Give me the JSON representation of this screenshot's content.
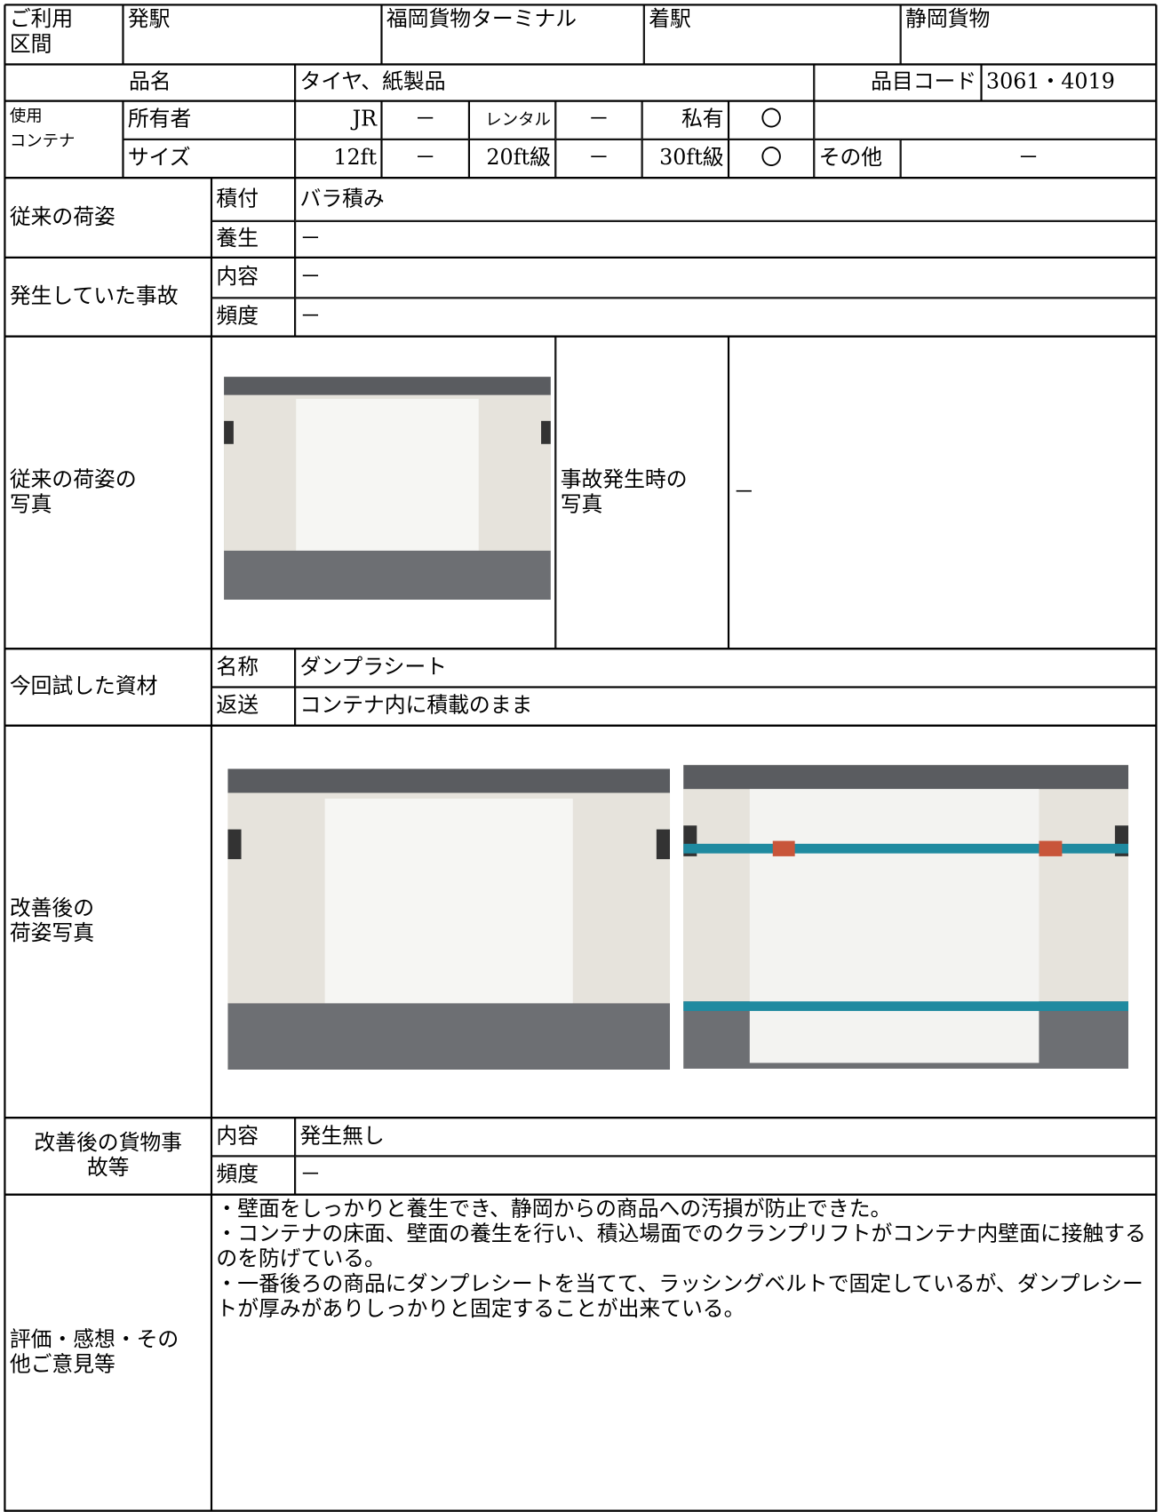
{
  "route": {
    "label": "ご利用\n区間",
    "from_label": "発駅",
    "from": "福岡貨物ターミナル",
    "to_label": "着駅",
    "to": "静岡貨物"
  },
  "item": {
    "label": "品名",
    "name": "タイヤ、紙製品",
    "code_label": "品目コード",
    "code": "3061・4019"
  },
  "container": {
    "label": "使用\nコンテナ",
    "owner_label": "所有者",
    "owner": [
      [
        "JR",
        "－"
      ],
      [
        "レンタル",
        "－"
      ],
      [
        "私有",
        "〇"
      ]
    ],
    "size_label": "サイズ",
    "size": [
      [
        "12ft",
        "－"
      ],
      [
        "20ft級",
        "－"
      ],
      [
        "30ft級",
        "〇"
      ]
    ],
    "other_label": "その他",
    "other": "－"
  },
  "packing": {
    "label": "従来の荷姿",
    "rows": [
      [
        "積付",
        "バラ積み"
      ],
      [
        "養生",
        "－"
      ]
    ]
  },
  "accident": {
    "label": "発生していた事故",
    "rows": [
      [
        "内容",
        "－"
      ],
      [
        "頻度",
        "－"
      ]
    ]
  },
  "photos_before": {
    "label": "従来の荷姿の\n写真",
    "accident_label": "事故発生時の\n写真",
    "accident_value": "－"
  },
  "material": {
    "label": "今回試した資材",
    "rows": [
      [
        "名称",
        "ダンプラシート"
      ],
      [
        "返送",
        "コンテナ内に積載のまま"
      ]
    ]
  },
  "photos_after": {
    "label": "改善後の\n荷姿写真"
  },
  "after_accident": {
    "label": "改善後の貨物事\n故等",
    "rows": [
      [
        "内容",
        "発生無し"
      ],
      [
        "頻度",
        "－"
      ]
    ]
  },
  "evaluation": {
    "label": "評価・感想・その\n他ご意見等",
    "comments": [
      "・壁面をしっかりと養生でき、静岡からの商品への汚損が防止できた。",
      "・コンテナの床面、壁面の養生を行い、積込場面でのクランプリフトがコンテナ内壁面に接触するのを防げている。",
      "・一番後ろの商品にダンプレシートを当てて、ラッシングベルトで固定しているが、ダンプレシートが厚みがありしっかりと固定することが出来ている。"
    ]
  }
}
